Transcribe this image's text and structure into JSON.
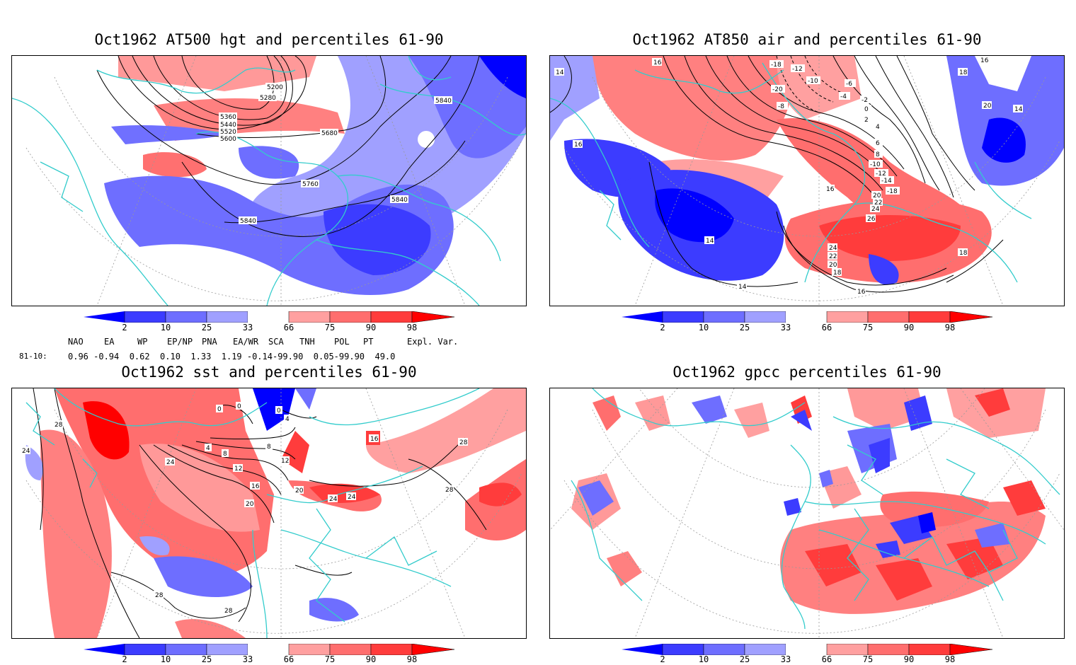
{
  "panels": [
    {
      "title": "Oct1962 AT500 hgt and percentiles 61-90",
      "contour_labels": [
        "5200",
        "5280",
        "5360",
        "5440",
        "5520",
        "5600",
        "5680",
        "5840",
        "5760",
        "5840",
        "5840"
      ]
    },
    {
      "title": "Oct1962 AT850 air and percentiles 61-90",
      "contour_labels": [
        "16",
        "14",
        "16",
        "16",
        "18",
        "-18",
        "-12",
        "-10",
        "-20",
        "-6",
        "-8",
        "-4",
        "-2",
        "0",
        "2",
        "4",
        "6",
        "8",
        "-10",
        "-12",
        "-14",
        "-18",
        "20",
        "22",
        "24",
        "26",
        "24",
        "22",
        "20",
        "18",
        "16",
        "14",
        "14",
        "14",
        "18",
        "20",
        "16"
      ]
    },
    {
      "title": "Oct1962 sst and percentiles 61-90",
      "contour_labels": [
        "28",
        "24",
        "0",
        "0",
        "0",
        "4",
        "4",
        "8",
        "8",
        "12",
        "12",
        "16",
        "16",
        "20",
        "20",
        "24",
        "24",
        "24",
        "28",
        "28",
        "28",
        "28"
      ]
    },
    {
      "title": "Oct1962 gpcc percentiles 61-90",
      "contour_labels": []
    }
  ],
  "colorbar": {
    "ticks": [
      "2",
      "10",
      "25",
      "33",
      "66",
      "75",
      "90",
      "98"
    ],
    "colors": [
      "#0000ff",
      "#3c3cff",
      "#6e6eff",
      "#a0a0ff",
      "#ffffff",
      "#ffa0a0",
      "#ff6e6e",
      "#ff3c3c",
      "#ff0000"
    ]
  },
  "indices": {
    "headers": [
      "NAO",
      "EA",
      "WP",
      "EP/NP",
      "PNA",
      "EA/WR",
      "SCA",
      "TNH",
      "POL",
      "PT",
      "Expl. Var."
    ],
    "row_label": "81-10:",
    "values": "0.96 -0.94  0.62  0.10  1.33  1.19 -0.14-99.90  0.05-99.90  49.0"
  },
  "colors": {
    "coast": "#33cccc",
    "contour": "#000000",
    "grid": "#999999"
  }
}
